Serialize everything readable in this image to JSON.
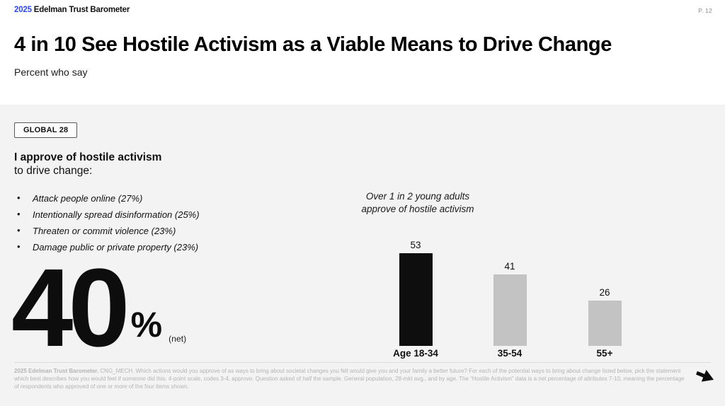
{
  "header": {
    "logo_year": "2025",
    "logo_name": "Edelman Trust Barometer",
    "page_number": "P. 12",
    "title": "4 in 10 See Hostile Activism as a Viable Means to Drive Change",
    "subtitle": "Percent who say"
  },
  "left_column": {
    "badge_label": "GLOBAL 28",
    "statement_bold": "I approve of hostile activism",
    "statement_rest": "to drive change:",
    "bullet_char": "•",
    "bullets": [
      "Attack people online (27%)",
      "Intentionally spread disinformation (25%)",
      "Threaten or commit violence (23%)",
      "Damage public or private property (23%)"
    ],
    "big_stat": {
      "value": "40",
      "unit": "%",
      "suffix": "(net)"
    }
  },
  "chart_data": {
    "type": "bar",
    "annotation_line1": "Over 1 in 2 young adults",
    "annotation_line2": "approve of hostile activism",
    "categories": [
      "Age 18-34",
      "35-54",
      "55+"
    ],
    "values": [
      53,
      41,
      26
    ],
    "bar_colors": [
      "#0e0e0e",
      "#c3c3c3",
      "#c3c3c3"
    ],
    "ylim": [
      0,
      60
    ],
    "grid": false,
    "legend": false,
    "value_labels": true
  },
  "footer": {
    "source_bold": "2025 Edelman Trust Barometer.",
    "source_text": " CNG_MECH. Which actions would you approve of as ways to bring about societal changes you felt would give you and your family a better future? For each of the potential ways to bring about change listed below, pick the statement which best describes how you would feel if someone did this. 4-point scale, codes 3-4, approve. Question asked of half the sample. General population, 28-mkt avg., and by age. The “Hostile Activism” data is a net percentage of attributes 7-10, meaning the percentage of respondents who approved of one or more of the four items shown.",
    "arrow_icon": "arrow-right"
  },
  "colors": {
    "accent_blue": "#2b46ff",
    "content_bg": "#f3f3f3",
    "header_bg": "#ffffff",
    "bar_black": "#0e0e0e",
    "bar_gray": "#c3c3c3"
  }
}
